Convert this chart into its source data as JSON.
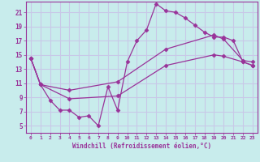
{
  "xlabel": "Windchill (Refroidissement éolien,°C)",
  "bg_color": "#c8ecec",
  "grid_color": "#c8c8e8",
  "line_color": "#993399",
  "spine_color": "#993399",
  "xlim": [
    -0.5,
    23.5
  ],
  "ylim": [
    4.0,
    22.5
  ],
  "xticks": [
    0,
    1,
    2,
    3,
    4,
    5,
    6,
    7,
    8,
    9,
    10,
    11,
    12,
    13,
    14,
    15,
    16,
    17,
    18,
    19,
    20,
    21,
    22,
    23
  ],
  "yticks": [
    5,
    7,
    9,
    11,
    13,
    15,
    17,
    19,
    21
  ],
  "line1_x": [
    0,
    1,
    2,
    3,
    4,
    5,
    6,
    7,
    8,
    9,
    10,
    11,
    12,
    13,
    14,
    15,
    16,
    17,
    18,
    19,
    20,
    21,
    22,
    23
  ],
  "line1_y": [
    14.5,
    10.8,
    8.6,
    7.2,
    7.2,
    6.2,
    6.4,
    5.0,
    10.5,
    7.2,
    14.0,
    17.0,
    18.5,
    22.2,
    21.2,
    21.0,
    20.2,
    19.2,
    18.2,
    17.5,
    17.5,
    17.0,
    14.0,
    13.5
  ],
  "line2_x": [
    0,
    1,
    4,
    9,
    14,
    19,
    20,
    22,
    23
  ],
  "line2_y": [
    14.5,
    10.8,
    10.0,
    11.2,
    15.8,
    17.8,
    17.2,
    14.2,
    14.0
  ],
  "line3_x": [
    0,
    1,
    4,
    9,
    14,
    19,
    20,
    22,
    23
  ],
  "line3_y": [
    14.5,
    10.8,
    8.8,
    9.2,
    13.5,
    15.0,
    14.8,
    14.0,
    13.5
  ]
}
